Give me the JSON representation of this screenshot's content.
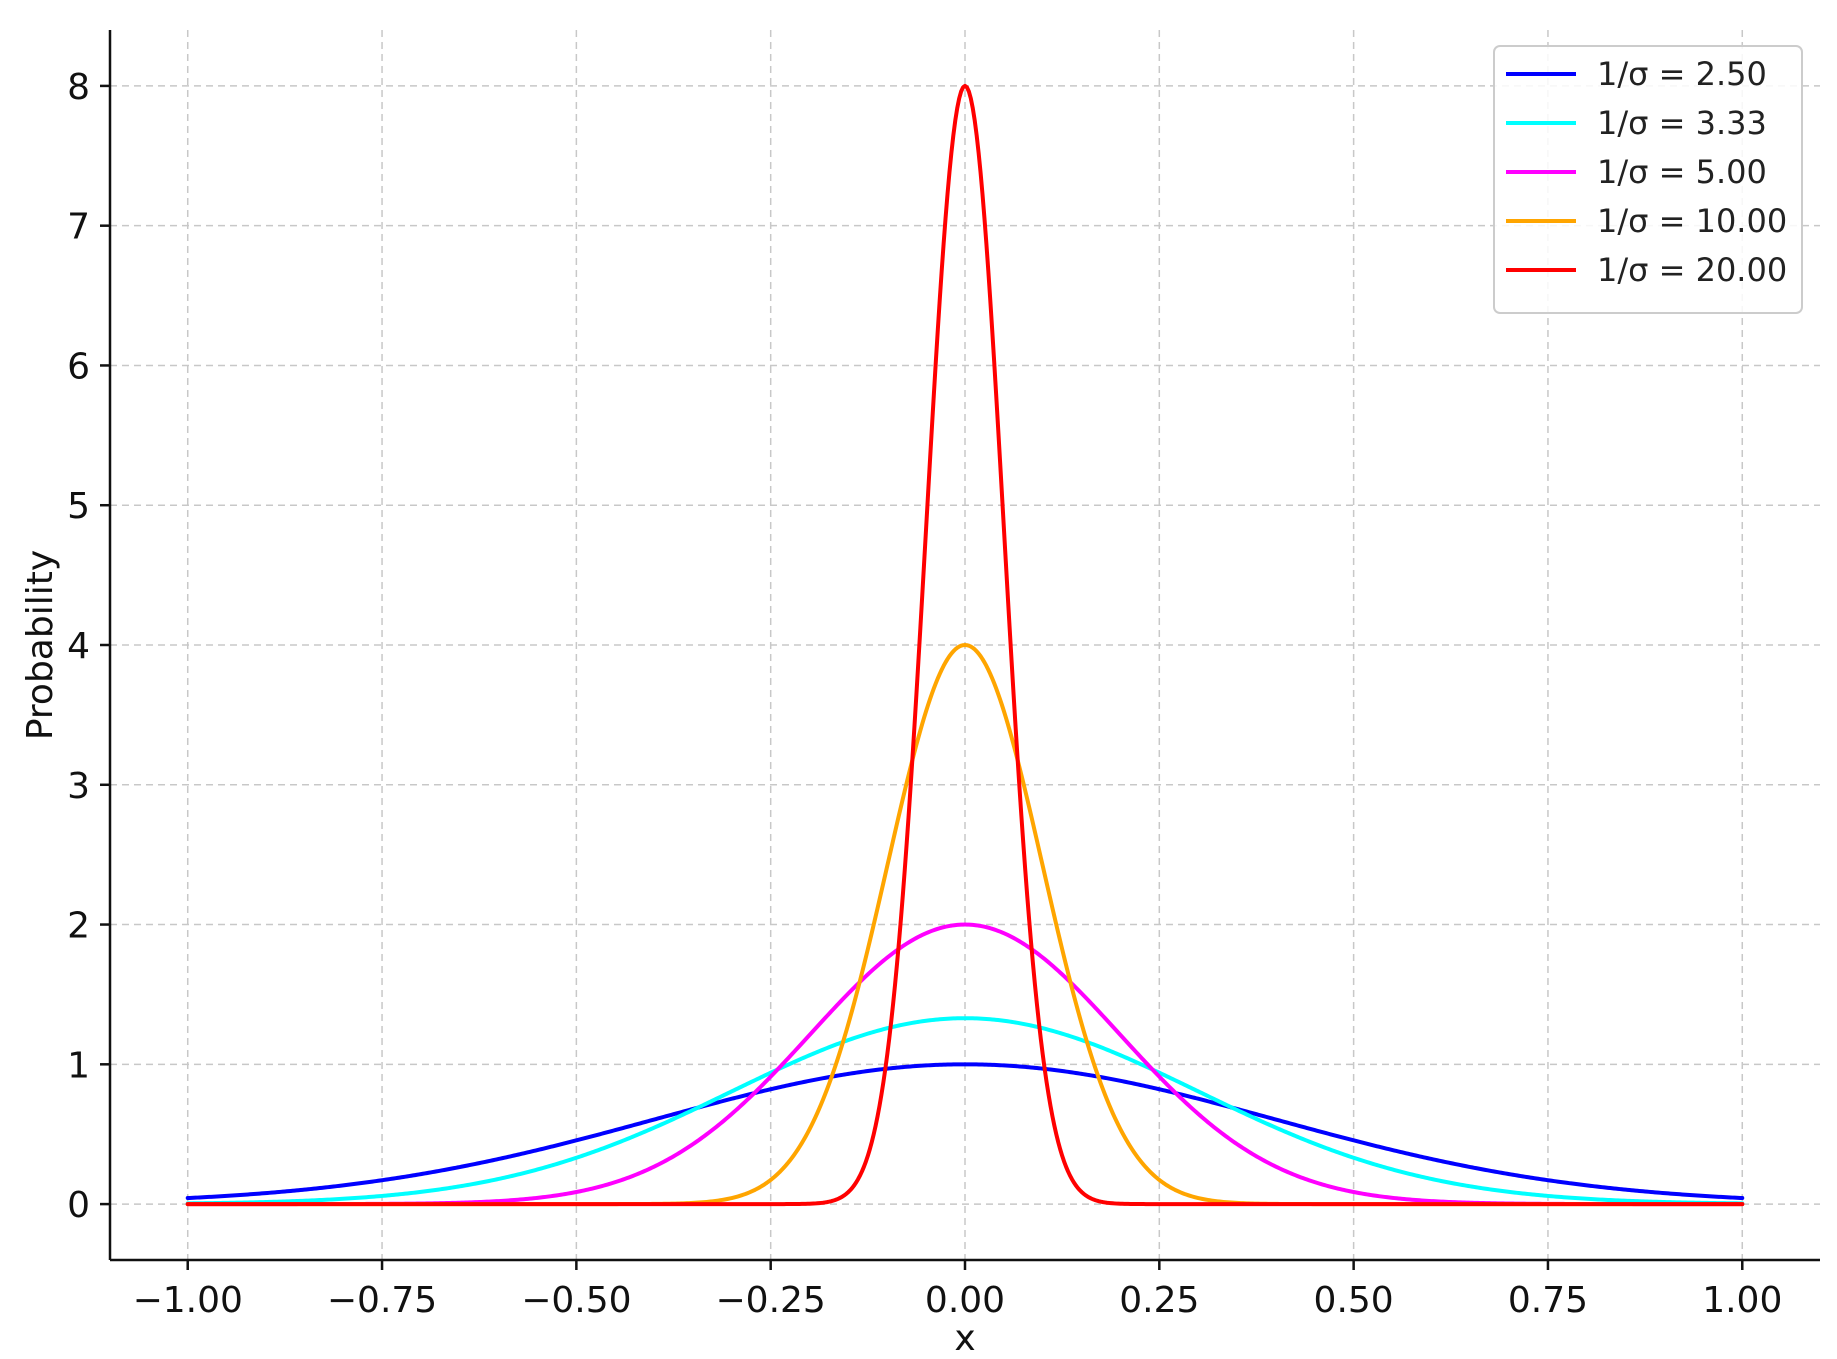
{
  "chart_data": {
    "type": "line",
    "title": "",
    "xlabel": "x",
    "ylabel": "Probability",
    "xlim": [
      -1.1,
      1.1
    ],
    "ylim": [
      -0.4,
      8.4
    ],
    "x_ticks": [
      -1.0,
      -0.75,
      -0.5,
      -0.25,
      0.0,
      0.25,
      0.5,
      0.75,
      1.0
    ],
    "x_tick_labels": [
      "−1.00",
      "−0.75",
      "−0.50",
      "−0.25",
      "0.00",
      "0.25",
      "0.50",
      "0.75",
      "1.00"
    ],
    "y_ticks": [
      0,
      1,
      2,
      3,
      4,
      5,
      6,
      7,
      8
    ],
    "y_tick_labels": [
      "0",
      "1",
      "2",
      "3",
      "4",
      "5",
      "6",
      "7",
      "8"
    ],
    "grid": true,
    "legend_position": "top-right",
    "x_range": [
      -1.0,
      1.0
    ],
    "series": [
      {
        "name": "1/σ = 2.50",
        "color": "#0000ff",
        "peak": 1.0,
        "x": [
          -1.0,
          -0.75,
          -0.5,
          -0.25,
          0.0,
          0.25,
          0.5,
          0.75,
          1.0
        ],
        "y": [
          0.044,
          0.172,
          0.458,
          0.821,
          1.0,
          0.821,
          0.458,
          0.172,
          0.044
        ]
      },
      {
        "name": "1/σ = 3.33",
        "color": "#00ffff",
        "peak": 1.33,
        "x": [
          -1.0,
          -0.75,
          -0.5,
          -0.25,
          0.0,
          0.25,
          0.5,
          0.75,
          1.0
        ],
        "y": [
          0.005,
          0.063,
          0.329,
          0.937,
          1.33,
          0.937,
          0.329,
          0.063,
          0.005
        ]
      },
      {
        "name": "1/σ = 5.00",
        "color": "#ff00ff",
        "peak": 2.0,
        "x": [
          -1.0,
          -0.75,
          -0.5,
          -0.25,
          0.0,
          0.25,
          0.5,
          0.75,
          1.0
        ],
        "y": [
          0.0,
          0.002,
          0.088,
          0.91,
          2.0,
          0.91,
          0.088,
          0.002,
          0.0
        ]
      },
      {
        "name": "1/σ = 10.00",
        "color": "#ffa500",
        "peak": 4.0,
        "x": [
          -1.0,
          -0.5,
          -0.25,
          -0.1,
          0.0,
          0.1,
          0.25,
          0.5,
          1.0
        ],
        "y": [
          0.0,
          0.0,
          0.176,
          2.43,
          4.0,
          2.43,
          0.176,
          0.0,
          0.0
        ]
      },
      {
        "name": "1/σ = 20.00",
        "color": "#ff0000",
        "peak": 8.0,
        "x": [
          -1.0,
          -0.2,
          -0.1,
          -0.05,
          0.0,
          0.05,
          0.1,
          0.2,
          1.0
        ],
        "y": [
          0.0,
          0.003,
          1.08,
          4.85,
          8.0,
          4.85,
          1.08,
          0.003,
          0.0
        ]
      }
    ]
  }
}
